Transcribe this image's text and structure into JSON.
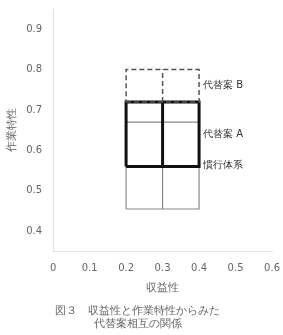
{
  "chart_data": {
    "type": "rectangle",
    "title": [
      "図３　収益性と作業特性からみた",
      "代替案相互の関係"
    ],
    "xlabel": "収益性",
    "ylabel": "作業特性",
    "xlim": [
      0,
      0.6
    ],
    "ylim": [
      0.35,
      0.95
    ],
    "xticks": [
      0,
      0.1,
      0.2,
      0.3,
      0.4,
      0.5,
      0.6
    ],
    "yticks": [
      0.4,
      0.5,
      0.6,
      0.7,
      0.8,
      0.9
    ],
    "grid": false,
    "series": [
      {
        "name": "代替案 B",
        "color": "#555555",
        "line_style": "dashed",
        "x": 0.2,
        "y": 0.72,
        "width": 0.2,
        "height": 0.08,
        "divider_x": 0.3
      },
      {
        "name": "代替案 A",
        "color": "#111111",
        "line_style": "solid",
        "x": 0.2,
        "y": 0.56,
        "width": 0.2,
        "height": 0.16,
        "divider_x": 0.3
      },
      {
        "name": "慣行体系",
        "color": "#888888",
        "line_style": "solid",
        "x": 0.2,
        "y": 0.455,
        "width": 0.2,
        "height": 0.215,
        "divider_x": 0.3
      }
    ]
  }
}
